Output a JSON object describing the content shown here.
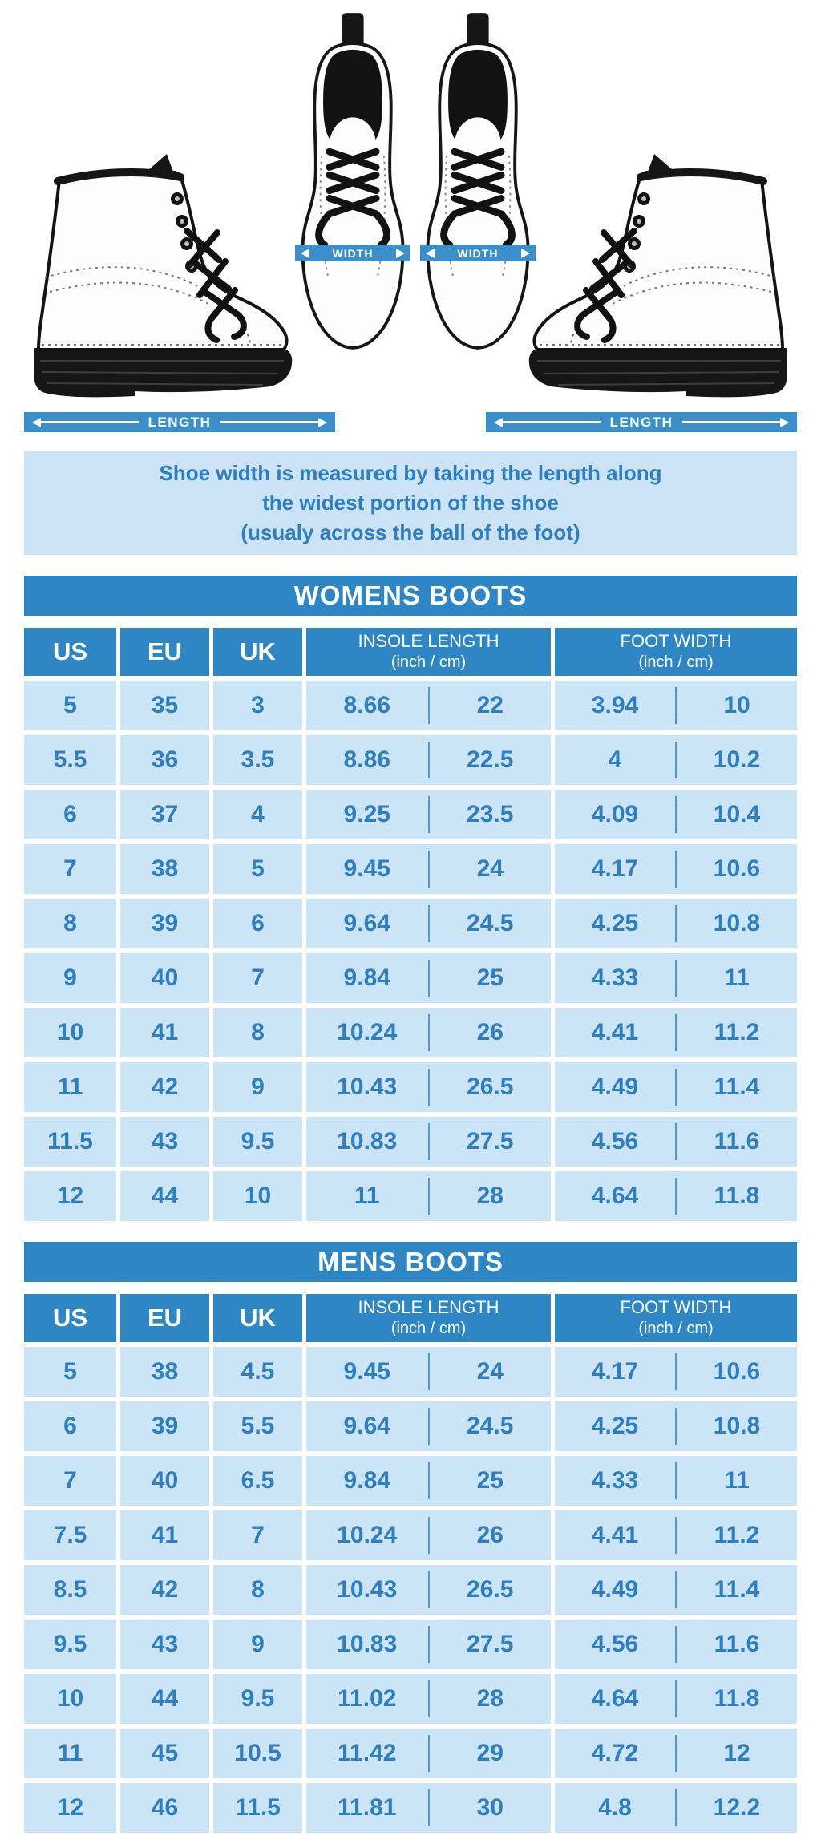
{
  "hero": {
    "width_label": "WIDTH",
    "length_label": "LENGTH"
  },
  "note": {
    "line1": "Shoe width is measured by taking the length along",
    "line2": "the widest portion of the shoe",
    "line3": "(usualy across the ball of the foot)"
  },
  "tables": [
    {
      "title": "WOMENS BOOTS",
      "columns": {
        "us": "US",
        "eu": "EU",
        "uk": "UK",
        "insole_label": "INSOLE LENGTH",
        "insole_sub": "(inch / cm)",
        "foot_label": "FOOT WIDTH",
        "foot_sub": "(inch / cm)"
      },
      "rows": [
        [
          "5",
          "35",
          "3",
          "8.66",
          "22",
          "3.94",
          "10"
        ],
        [
          "5.5",
          "36",
          "3.5",
          "8.86",
          "22.5",
          "4",
          "10.2"
        ],
        [
          "6",
          "37",
          "4",
          "9.25",
          "23.5",
          "4.09",
          "10.4"
        ],
        [
          "7",
          "38",
          "5",
          "9.45",
          "24",
          "4.17",
          "10.6"
        ],
        [
          "8",
          "39",
          "6",
          "9.64",
          "24.5",
          "4.25",
          "10.8"
        ],
        [
          "9",
          "40",
          "7",
          "9.84",
          "25",
          "4.33",
          "11"
        ],
        [
          "10",
          "41",
          "8",
          "10.24",
          "26",
          "4.41",
          "11.2"
        ],
        [
          "11",
          "42",
          "9",
          "10.43",
          "26.5",
          "4.49",
          "11.4"
        ],
        [
          "11.5",
          "43",
          "9.5",
          "10.83",
          "27.5",
          "4.56",
          "11.6"
        ],
        [
          "12",
          "44",
          "10",
          "11",
          "28",
          "4.64",
          "11.8"
        ]
      ]
    },
    {
      "title": "MENS BOOTS",
      "columns": {
        "us": "US",
        "eu": "EU",
        "uk": "UK",
        "insole_label": "INSOLE LENGTH",
        "insole_sub": "(inch / cm)",
        "foot_label": "FOOT WIDTH",
        "foot_sub": "(inch / cm)"
      },
      "rows": [
        [
          "5",
          "38",
          "4.5",
          "9.45",
          "24",
          "4.17",
          "10.6"
        ],
        [
          "6",
          "39",
          "5.5",
          "9.64",
          "24.5",
          "4.25",
          "10.8"
        ],
        [
          "7",
          "40",
          "6.5",
          "9.84",
          "25",
          "4.33",
          "11"
        ],
        [
          "7.5",
          "41",
          "7",
          "10.24",
          "26",
          "4.41",
          "11.2"
        ],
        [
          "8.5",
          "42",
          "8",
          "10.43",
          "26.5",
          "4.49",
          "11.4"
        ],
        [
          "9.5",
          "43",
          "9",
          "10.83",
          "27.5",
          "4.56",
          "11.6"
        ],
        [
          "10",
          "44",
          "9.5",
          "11.02",
          "28",
          "4.64",
          "11.8"
        ],
        [
          "11",
          "45",
          "10.5",
          "11.42",
          "29",
          "4.72",
          "12"
        ],
        [
          "12",
          "46",
          "11.5",
          "11.81",
          "30",
          "4.8",
          "12.2"
        ]
      ]
    }
  ],
  "colors": {
    "primary_blue": "#2E86C4",
    "band_blue": "#3B90CB",
    "cell_blue": "#CBE5F7",
    "note_bg": "#CBE3F5",
    "text_blue": "#2E7FBF",
    "divider_blue": "#4E9BCE"
  }
}
